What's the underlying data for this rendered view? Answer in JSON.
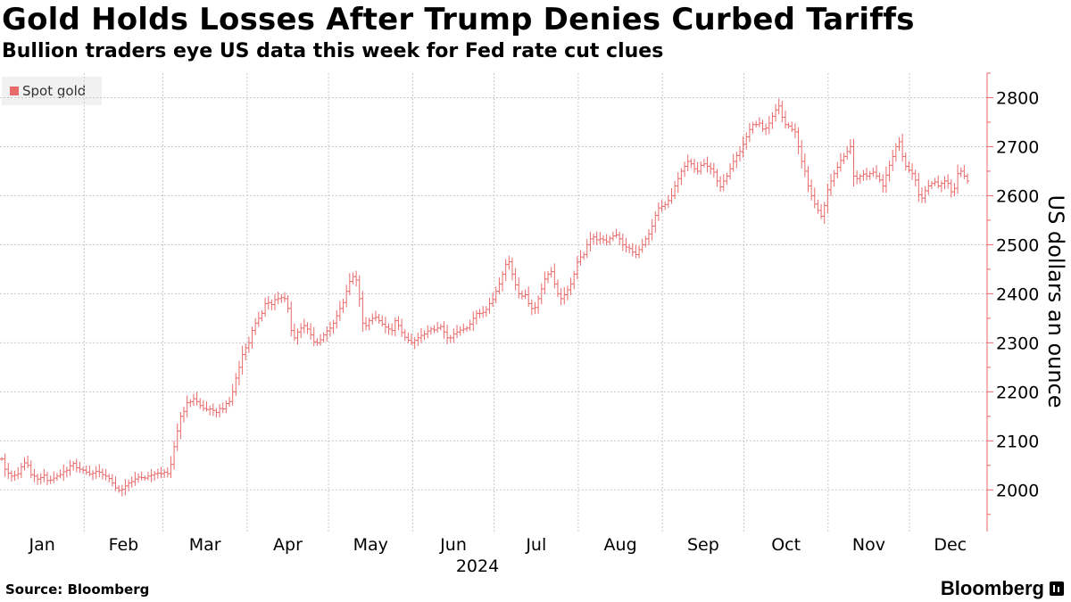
{
  "chart_data": {
    "type": "line",
    "style": "ohlc",
    "title": "Gold Holds Losses After Trump Denies Curbed Tariffs",
    "subtitle": "Bullion traders eye US data this week for Fed rate cut clues",
    "series": [
      {
        "name": "Spot gold",
        "color": "#e8696a",
        "values": [
          2063,
          2042,
          2034,
          2028,
          2030,
          2033,
          2047,
          2055,
          2050,
          2031,
          2028,
          2022,
          2025,
          2030,
          2019,
          2020,
          2024,
          2028,
          2031,
          2037,
          2040,
          2049,
          2054,
          2045,
          2042,
          2040,
          2036,
          2032,
          2034,
          2038,
          2036,
          2031,
          2028,
          2023,
          2014,
          2004,
          1999,
          2001,
          2008,
          2014,
          2017,
          2022,
          2026,
          2025,
          2024,
          2028,
          2030,
          2033,
          2034,
          2033,
          2036,
          2033,
          2052,
          2088,
          2120,
          2150,
          2160,
          2178,
          2180,
          2186,
          2180,
          2172,
          2166,
          2164,
          2165,
          2162,
          2158,
          2166,
          2165,
          2176,
          2180,
          2200,
          2228,
          2250,
          2276,
          2290,
          2300,
          2325,
          2340,
          2350,
          2360,
          2380,
          2382,
          2378,
          2388,
          2390,
          2392,
          2390,
          2370,
          2325,
          2310,
          2322,
          2330,
          2335,
          2328,
          2316,
          2302,
          2300,
          2306,
          2316,
          2324,
          2330,
          2340,
          2355,
          2370,
          2382,
          2405,
          2425,
          2435,
          2428,
          2390,
          2340,
          2335,
          2345,
          2350,
          2352,
          2345,
          2338,
          2332,
          2328,
          2325,
          2345,
          2335,
          2321,
          2311,
          2305,
          2300,
          2305,
          2310,
          2315,
          2318,
          2324,
          2328,
          2326,
          2330,
          2333,
          2322,
          2310,
          2310,
          2318,
          2322,
          2326,
          2328,
          2330,
          2338,
          2350,
          2360,
          2360,
          2362,
          2368,
          2380,
          2388,
          2405,
          2420,
          2440,
          2460,
          2465,
          2440,
          2418,
          2400,
          2395,
          2398,
          2380,
          2370,
          2372,
          2390,
          2410,
          2430,
          2440,
          2445,
          2420,
          2400,
          2390,
          2398,
          2408,
          2420,
          2440,
          2465,
          2475,
          2480,
          2500,
          2512,
          2516,
          2510,
          2512,
          2510,
          2506,
          2513,
          2518,
          2520,
          2512,
          2500,
          2495,
          2492,
          2485,
          2480,
          2490,
          2500,
          2512,
          2522,
          2538,
          2560,
          2575,
          2578,
          2582,
          2590,
          2600,
          2620,
          2635,
          2650,
          2660,
          2670,
          2665,
          2655,
          2650,
          2662,
          2665,
          2660,
          2655,
          2648,
          2630,
          2618,
          2630,
          2640,
          2655,
          2670,
          2682,
          2690,
          2705,
          2720,
          2735,
          2745,
          2745,
          2748,
          2736,
          2738,
          2748,
          2762,
          2775,
          2783,
          2760,
          2745,
          2742,
          2735,
          2730,
          2700,
          2670,
          2650,
          2620,
          2600,
          2583,
          2570,
          2558,
          2580,
          2612,
          2630,
          2645,
          2658,
          2672,
          2680,
          2690,
          2700,
          2640,
          2635,
          2640,
          2644,
          2640,
          2645,
          2648,
          2640,
          2632,
          2620,
          2642,
          2662,
          2680,
          2700,
          2710,
          2680,
          2660,
          2652,
          2645,
          2632,
          2602,
          2595,
          2610,
          2620,
          2625,
          2628,
          2620,
          2625,
          2630,
          2625,
          2608,
          2615,
          2645,
          2650,
          2640,
          2630
        ]
      }
    ],
    "x_ticks": [
      "Jan",
      "Feb",
      "Mar",
      "Apr",
      "May",
      "Jun",
      "Jul",
      "Aug",
      "Sep",
      "Oct",
      "Nov",
      "Dec"
    ],
    "x_year_label": "2024",
    "x_range": [
      "2024-01-01",
      "2024-12-23"
    ],
    "y_ticks": [
      2000,
      2100,
      2200,
      2300,
      2400,
      2500,
      2600,
      2700,
      2800
    ],
    "ylim": [
      1915,
      2850
    ],
    "ylabel": "US dollars an ounce",
    "y_axis_side": "right",
    "grid": true,
    "legend_position": "top-left"
  },
  "footer": {
    "source_label": "Source: Bloomberg",
    "brand": "Bloomberg"
  },
  "colors": {
    "series": "#e8696a",
    "axis": "#e8696a",
    "grid": "#c8c8c8"
  }
}
